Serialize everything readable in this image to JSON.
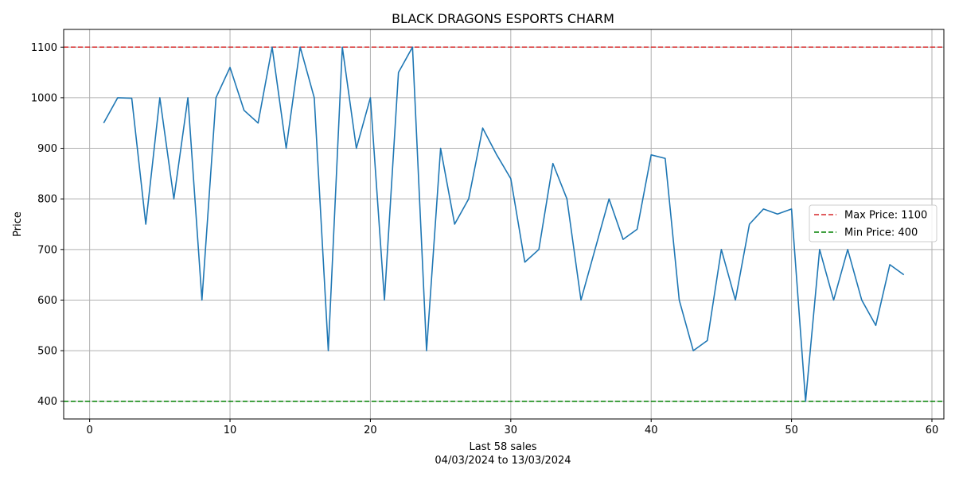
{
  "chart_data": {
    "type": "line",
    "title": "BLACK DRAGONS ESPORTS CHARM",
    "xlabel": "Last 58 sales",
    "xlabel_sub": "04/03/2024 to 13/03/2024",
    "ylabel": "Price",
    "xlim": [
      -1.85,
      60.85
    ],
    "ylim": [
      365,
      1135
    ],
    "x_ticks": [
      0,
      10,
      20,
      30,
      40,
      50,
      60
    ],
    "y_ticks": [
      400,
      500,
      600,
      700,
      800,
      900,
      1000,
      1100
    ],
    "grid": true,
    "legend_position": "center-right",
    "series": [
      {
        "color": "#1f77b4",
        "x": [
          1,
          2,
          3,
          4,
          5,
          6,
          7,
          8,
          9,
          10,
          11,
          12,
          13,
          14,
          15,
          16,
          17,
          18,
          19,
          20,
          21,
          22,
          23,
          24,
          25,
          26,
          27,
          28,
          29,
          30,
          31,
          32,
          33,
          34,
          35,
          36,
          37,
          38,
          39,
          40,
          41,
          42,
          43,
          44,
          45,
          46,
          47,
          48,
          49,
          50,
          51,
          52,
          53,
          54,
          55,
          56,
          57,
          58
        ],
        "values": [
          950,
          1000,
          999,
          750,
          1000,
          800,
          1000,
          600,
          1000,
          1060,
          975,
          950,
          1100,
          900,
          1100,
          1000,
          500,
          1100,
          900,
          1000,
          600,
          1050,
          1100,
          500,
          900,
          750,
          800,
          940,
          887,
          840,
          675,
          700,
          870,
          800,
          600,
          700,
          800,
          720,
          740,
          887,
          880,
          600,
          500,
          520,
          700,
          600,
          750,
          780,
          770,
          780,
          400,
          700,
          600,
          700,
          600,
          550,
          670,
          650
        ]
      }
    ],
    "reference_lines": [
      {
        "label": "Max Price: 1100",
        "value": 1100,
        "color": "#d62728",
        "style": "dashed"
      },
      {
        "label": "Min Price: 400",
        "value": 400,
        "color": "#008000",
        "style": "dashed"
      }
    ]
  }
}
